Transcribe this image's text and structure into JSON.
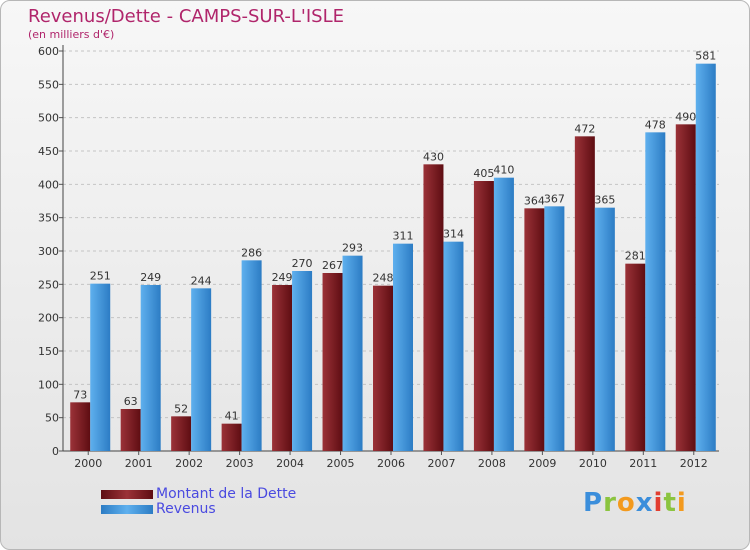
{
  "chart_data": {
    "type": "bar",
    "title": "Revenus/Dette - CAMPS-SUR-L'ISLE",
    "subtitle": "(en milliers d'€)",
    "categories": [
      "2000",
      "2001",
      "2002",
      "2003",
      "2004",
      "2005",
      "2006",
      "2007",
      "2008",
      "2009",
      "2010",
      "2011",
      "2012"
    ],
    "series": [
      {
        "name": "Montant de la Dette",
        "values": [
          73,
          63,
          52,
          41,
          249,
          267,
          248,
          430,
          405,
          364,
          472,
          281,
          490
        ],
        "color": "#7a1c22"
      },
      {
        "name": "Revenus",
        "values": [
          251,
          249,
          244,
          286,
          270,
          293,
          311,
          314,
          410,
          367,
          365,
          478,
          581
        ],
        "color": "#3a8fd8"
      }
    ],
    "ylim": [
      0,
      600
    ],
    "yticks": [
      0,
      50,
      100,
      150,
      200,
      250,
      300,
      350,
      400,
      450,
      500,
      550,
      600
    ],
    "grid": true,
    "legend_position": "bottom-left"
  },
  "logo": {
    "letters": [
      "P",
      "r",
      "o",
      "x",
      "i",
      "t",
      "i"
    ],
    "colors": [
      "#3b8edb",
      "#8bc43f",
      "#f39a1e",
      "#3b8edb",
      "#e23d2f",
      "#8bc43f",
      "#f39a1e"
    ]
  }
}
